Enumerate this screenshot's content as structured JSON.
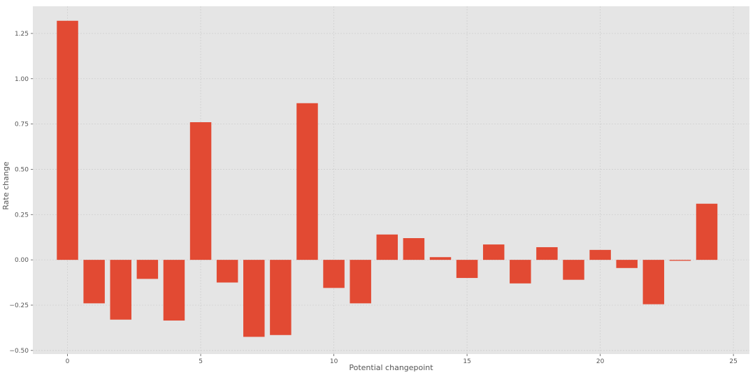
{
  "chart_data": {
    "type": "bar",
    "title": "",
    "xlabel": "Potential changepoint",
    "ylabel": "Rate change",
    "x": [
      0,
      1,
      2,
      3,
      4,
      5,
      6,
      7,
      8,
      9,
      10,
      11,
      12,
      13,
      14,
      15,
      16,
      17,
      18,
      19,
      20,
      21,
      22,
      23,
      24
    ],
    "values": [
      1.32,
      -0.24,
      -0.33,
      -0.105,
      -0.335,
      0.76,
      -0.125,
      -0.425,
      -0.415,
      0.865,
      -0.155,
      -0.24,
      0.14,
      0.12,
      0.015,
      -0.1,
      0.085,
      -0.13,
      0.07,
      -0.11,
      0.055,
      -0.045,
      -0.245,
      -0.005,
      0.31
    ],
    "xlim": [
      -1.3,
      25.6
    ],
    "ylim": [
      -0.52,
      1.4
    ],
    "xticks": [
      0,
      5,
      10,
      15,
      20,
      25
    ],
    "yticks": [
      -0.5,
      -0.25,
      0.0,
      0.25,
      0.5,
      0.75,
      1.0,
      1.25
    ],
    "xtick_labels": [
      "0",
      "5",
      "10",
      "15",
      "20",
      "25"
    ],
    "ytick_labels": [
      "−0.50",
      "−0.25",
      "0.00",
      "0.25",
      "0.50",
      "0.75",
      "1.00",
      "1.25"
    ],
    "grid": true,
    "bar_color": "#E24A33",
    "background": "#E5E5E5"
  }
}
